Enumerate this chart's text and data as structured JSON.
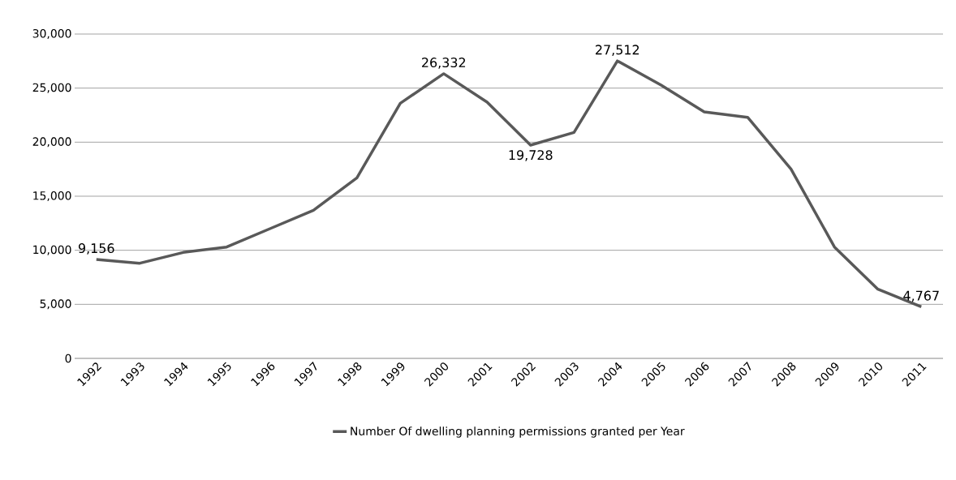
{
  "chart_data": {
    "type": "line",
    "categories": [
      "1992",
      "1993",
      "1994",
      "1995",
      "1996",
      "1997",
      "1998",
      "1999",
      "2000",
      "2001",
      "2002",
      "2003",
      "2004",
      "2005",
      "2006",
      "2007",
      "2008",
      "2009",
      "2010",
      "2011"
    ],
    "series": [
      {
        "name": "Number Of dwelling planning permissions granted per Year",
        "color": "#595959",
        "values": [
          9156,
          8800,
          9800,
          10300,
          12000,
          13700,
          16700,
          23600,
          26332,
          23700,
          19728,
          20900,
          27512,
          25300,
          22800,
          22300,
          17500,
          10300,
          6400,
          4767
        ],
        "value_labels": [
          "9,156",
          null,
          null,
          null,
          null,
          null,
          null,
          null,
          "26,332",
          null,
          "19,728",
          null,
          "27,512",
          null,
          null,
          null,
          null,
          null,
          null,
          "4,767"
        ]
      }
    ],
    "ylim": [
      0,
      30000
    ],
    "yticks": [
      {
        "value": 0,
        "label": "0"
      },
      {
        "value": 5000,
        "label": "5,000"
      },
      {
        "value": 10000,
        "label": "10,000"
      },
      {
        "value": 15000,
        "label": "15,000"
      },
      {
        "value": 20000,
        "label": "20,000"
      },
      {
        "value": 25000,
        "label": "25,000"
      },
      {
        "value": 30000,
        "label": "30,000"
      }
    ],
    "grid": "y",
    "legend": "bottom",
    "marker": "none",
    "line_style": "solid"
  }
}
